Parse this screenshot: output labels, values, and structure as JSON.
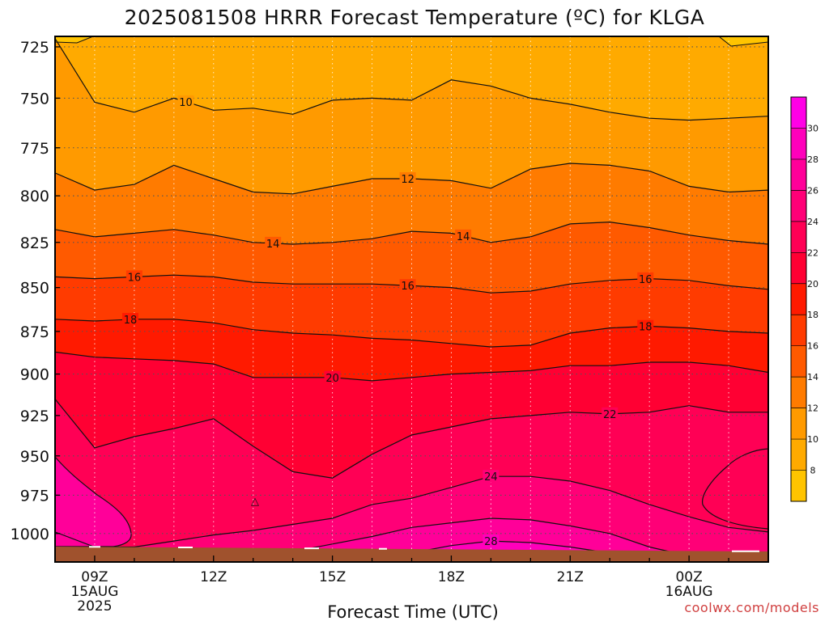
{
  "title": "2025081508 HRRR Forecast Temperature (ºC) for KLGA",
  "credit": "coolwx.com/models",
  "chart_data": {
    "type": "heatmap",
    "title": "2025081508 HRRR Forecast Temperature (ºC) for KLGA",
    "xlabel": "Forecast Time (UTC)",
    "ylabel": "",
    "x_hours": [
      8,
      9,
      10,
      11,
      12,
      13,
      14,
      15,
      16,
      17,
      18,
      19,
      20,
      21,
      22,
      23,
      24,
      25,
      26
    ],
    "x_range": [
      8,
      26
    ],
    "x_ticks": [
      {
        "hour": 9,
        "lines": [
          "09Z",
          "15AUG",
          "2025"
        ]
      },
      {
        "hour": 12,
        "lines": [
          "12Z"
        ]
      },
      {
        "hour": 15,
        "lines": [
          "15Z"
        ]
      },
      {
        "hour": 18,
        "lines": [
          "18Z"
        ]
      },
      {
        "hour": 21,
        "lines": [
          "21Z"
        ]
      },
      {
        "hour": 24,
        "lines": [
          "00Z",
          "16AUG"
        ]
      }
    ],
    "y_ticks_hPa": [
      725,
      750,
      775,
      800,
      825,
      850,
      875,
      900,
      925,
      950,
      975,
      1000
    ],
    "y_range_hPa": [
      720,
      1019
    ],
    "y_scale": "pressure (increasing downward, log)",
    "contour_levels": [
      8,
      10,
      12,
      14,
      16,
      18,
      20,
      22,
      24,
      26,
      28,
      30
    ],
    "contours": [
      {
        "level": 10,
        "hPa": [
          721,
          752,
          757,
          750,
          756,
          755,
          758,
          751,
          750,
          751,
          741,
          744,
          750,
          753,
          757,
          760,
          761,
          760,
          759
        ]
      },
      {
        "level": 12,
        "hPa": [
          788,
          797,
          794,
          784,
          791,
          798,
          799,
          795,
          791,
          791,
          792,
          796,
          786,
          783,
          784,
          787,
          795,
          798,
          797
        ]
      },
      {
        "level": 14,
        "hPa": [
          818,
          822,
          820,
          818,
          821,
          825,
          826,
          825,
          823,
          819,
          820,
          825,
          822,
          815,
          814,
          817,
          821,
          824,
          826
        ]
      },
      {
        "level": 16,
        "hPa": [
          844,
          845,
          844,
          843,
          844,
          847,
          848,
          848,
          848,
          849,
          850,
          853,
          852,
          848,
          846,
          845,
          846,
          849,
          851
        ]
      },
      {
        "level": 18,
        "hPa": [
          868,
          869,
          868,
          868,
          870,
          874,
          876,
          877,
          879,
          880,
          882,
          884,
          883,
          876,
          873,
          872,
          873,
          875,
          876
        ]
      },
      {
        "level": 20,
        "hPa": [
          887,
          890,
          891,
          892,
          894,
          902,
          902,
          902,
          904,
          902,
          900,
          899,
          898,
          895,
          895,
          893,
          893,
          895,
          899
        ]
      },
      {
        "level": 22,
        "hPa": [
          915,
          945,
          938,
          933,
          927,
          944,
          960,
          964,
          949,
          937,
          932,
          927,
          925,
          923,
          924,
          923,
          919,
          923,
          923
        ]
      },
      {
        "level": 24,
        "hPa": [
          999,
          1009,
          1009,
          1005,
          1001,
          998,
          994,
          990,
          981,
          977,
          970,
          963,
          963,
          966,
          972,
          981,
          989,
          996,
          999
        ]
      },
      {
        "level": 26,
        "hPa": [
          1019,
          1019,
          1019,
          1019,
          1019,
          1015,
          1012,
          1007,
          1002,
          996,
          993,
          990,
          991,
          995,
          1000,
          1009,
          1015,
          1019,
          1019
        ]
      },
      {
        "level": 28,
        "hPa": [
          1019,
          1019,
          1019,
          1019,
          1019,
          1019,
          1019,
          1019,
          1017,
          1013,
          1008,
          1005,
          1006,
          1009,
          1013,
          1019,
          1019,
          1019,
          1019
        ]
      },
      {
        "level": 30,
        "hPa": [
          1019,
          1019,
          1019,
          1019,
          1019,
          1019,
          1019,
          1019,
          1019,
          1019,
          1018,
          1015,
          1016,
          1018,
          1019,
          1019,
          1019,
          1019,
          1019
        ]
      }
    ],
    "contour_labels": [
      {
        "level": 10,
        "hour": 11.3
      },
      {
        "level": 12,
        "hour": 16.9
      },
      {
        "level": 14,
        "hour": 13.5
      },
      {
        "level": 14,
        "hour": 18.3
      },
      {
        "level": 16,
        "hour": 10.0
      },
      {
        "level": 16,
        "hour": 16.9
      },
      {
        "level": 16,
        "hour": 22.9
      },
      {
        "level": 18,
        "hour": 9.9
      },
      {
        "level": 18,
        "hour": 22.9
      },
      {
        "level": 20,
        "hour": 15.0
      },
      {
        "level": 22,
        "hour": 22.0
      },
      {
        "level": 24,
        "hour": 19.0
      },
      {
        "level": 28,
        "hour": 19.0
      }
    ],
    "legend": {
      "placement": "right",
      "ticks": [
        8,
        10,
        12,
        14,
        16,
        18,
        20,
        22,
        24,
        26,
        28,
        30
      ],
      "bins": [
        {
          "range": "<8",
          "color": "#ffc400"
        },
        {
          "range": "8-10",
          "color": "#ffaa00"
        },
        {
          "range": "10-12",
          "color": "#ff9a00"
        },
        {
          "range": "12-14",
          "color": "#ff7b00"
        },
        {
          "range": "14-16",
          "color": "#ff5a00"
        },
        {
          "range": "16-18",
          "color": "#ff3b00"
        },
        {
          "range": "18-20",
          "color": "#ff1a00"
        },
        {
          "range": "20-22",
          "color": "#ff0033"
        },
        {
          "range": "22-24",
          "color": "#ff0055"
        },
        {
          "range": "24-26",
          "color": "#ff0077"
        },
        {
          "range": "26-28",
          "color": "#ff0099"
        },
        {
          "range": "28-30",
          "color": "#ff00bb"
        },
        {
          "range": ">30",
          "color": "#ff00e6"
        }
      ]
    },
    "ground_color": "#a0522d",
    "grid": true,
    "grid_style": "dotted"
  }
}
